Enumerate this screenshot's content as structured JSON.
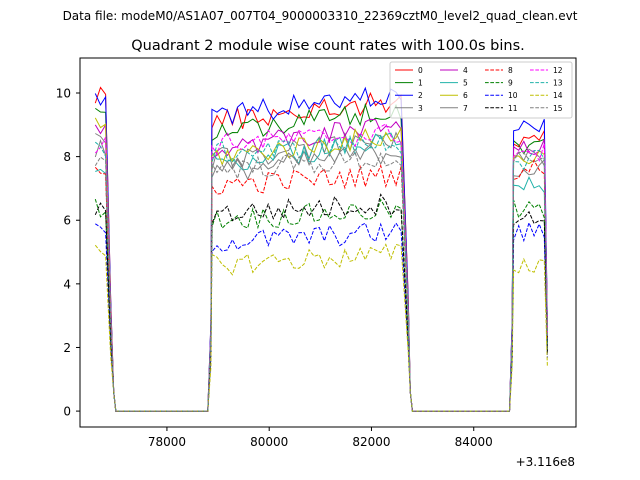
{
  "figure": {
    "suptitle": "Data file: modeM0/AS1A07_007T04_9000003310_22369cztM0_level2_quad_clean.evt"
  },
  "chart_data": {
    "type": "line",
    "title": "Quadrant 2 module wise count rates with 100.0s bins.",
    "xlabel": "",
    "ylabel": "",
    "x_offset_label": "+3.116e8",
    "x_offset": 311600000,
    "xlim": [
      76300,
      86000
    ],
    "ylim": [
      -0.5,
      11.1
    ],
    "xticks": [
      78000,
      80000,
      82000,
      84000
    ],
    "yticks": [
      0,
      2,
      4,
      6,
      8,
      10
    ],
    "grid": false,
    "legend": {
      "placement": "top-right",
      "ncol": 4
    },
    "series": [
      {
        "name": "0",
        "color": "#ff0000",
        "dash": false,
        "levels": [
          10.0,
          9.1,
          8.5
        ]
      },
      {
        "name": "1",
        "color": "#008000",
        "dash": false,
        "levels": [
          9.4,
          8.8,
          8.4
        ]
      },
      {
        "name": "2",
        "color": "#0000ff",
        "dash": false,
        "levels": [
          9.9,
          9.3,
          8.9
        ]
      },
      {
        "name": "3",
        "color": "#808080",
        "dash": false,
        "levels": [
          8.6,
          7.9,
          7.9
        ]
      },
      {
        "name": "4",
        "color": "#bf00bf",
        "dash": false,
        "levels": [
          8.7,
          8.3,
          8.2
        ]
      },
      {
        "name": "5",
        "color": "#20b2aa",
        "dash": false,
        "levels": [
          7.7,
          7.8,
          7.1
        ]
      },
      {
        "name": "6",
        "color": "#bfbf00",
        "dash": false,
        "levels": [
          8.9,
          8.0,
          8.0
        ]
      },
      {
        "name": "7",
        "color": "#808080",
        "dash": false,
        "levels": [
          8.3,
          7.5,
          7.6
        ]
      },
      {
        "name": "8",
        "color": "#ff0000",
        "dash": true,
        "levels": [
          7.4,
          7.1,
          7.6
        ]
      },
      {
        "name": "9",
        "color": "#008000",
        "dash": true,
        "levels": [
          6.4,
          6.0,
          6.3
        ]
      },
      {
        "name": "10",
        "color": "#0000ff",
        "dash": true,
        "levels": [
          5.6,
          5.3,
          5.6
        ]
      },
      {
        "name": "11",
        "color": "#000000",
        "dash": true,
        "levels": [
          6.4,
          6.2,
          6.0
        ]
      },
      {
        "name": "12",
        "color": "#ff00ff",
        "dash": true,
        "levels": [
          8.4,
          8.4,
          8.1
        ]
      },
      {
        "name": "13",
        "color": "#20b2aa",
        "dash": true,
        "levels": [
          8.2,
          8.1,
          7.9
        ]
      },
      {
        "name": "14",
        "color": "#bfbf00",
        "dash": true,
        "levels": [
          4.9,
          4.6,
          4.6
        ]
      },
      {
        "name": "15",
        "color": "#808080",
        "dash": true,
        "levels": [
          8.0,
          7.6,
          7.8
        ]
      }
    ]
  }
}
